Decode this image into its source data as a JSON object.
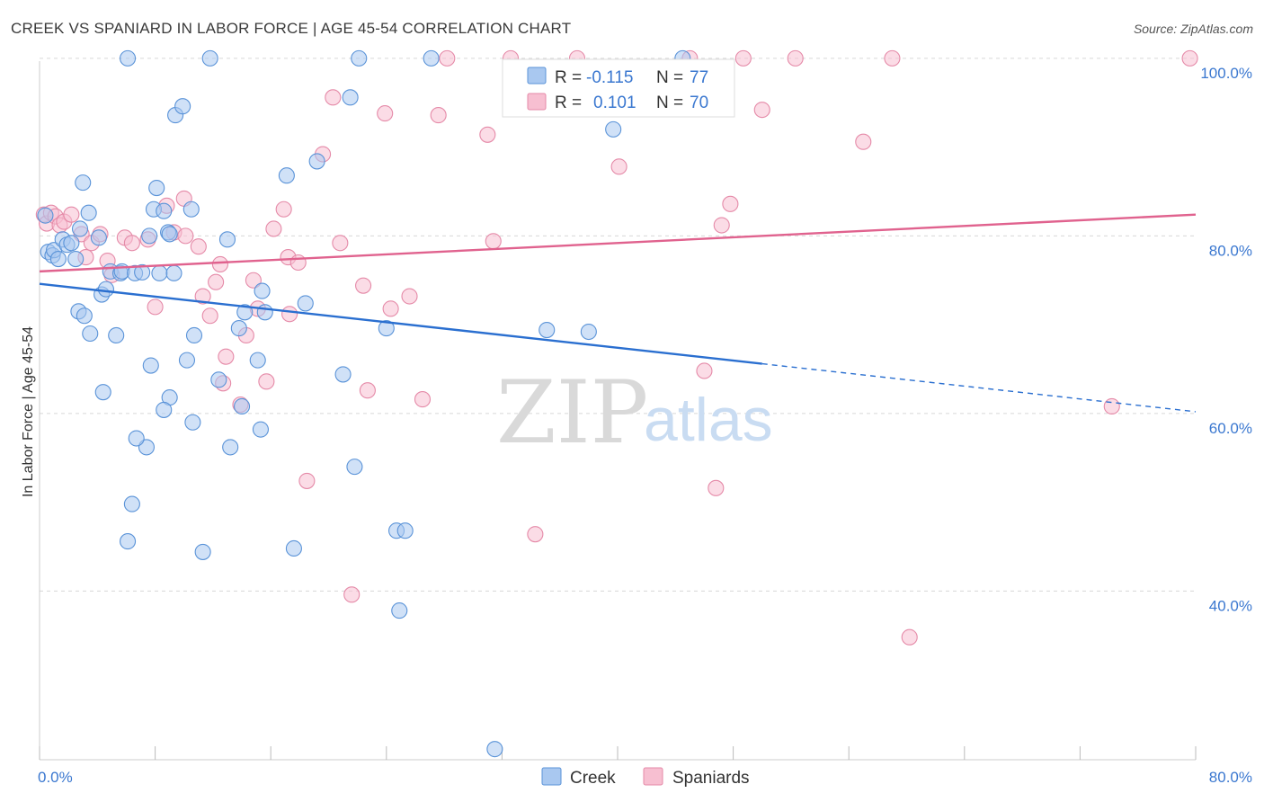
{
  "title": "CREEK VS SPANIARD IN LABOR FORCE | AGE 45-54 CORRELATION CHART",
  "source": "Source: ZipAtlas.com",
  "watermark": {
    "zip": "ZIP",
    "atlas": "atlas"
  },
  "chart_data": {
    "type": "scatter",
    "xlabel": "",
    "ylabel": "In Labor Force | Age 45-54",
    "xlim": [
      0,
      80
    ],
    "ylim": [
      21,
      101
    ],
    "x_tick_labels": [
      {
        "value": 0,
        "label": "0.0%"
      },
      {
        "value": 80,
        "label": "80.0%"
      }
    ],
    "y_tick_labels": [
      {
        "value": 40,
        "label": "40.0%"
      },
      {
        "value": 60,
        "label": "60.0%"
      },
      {
        "value": 80,
        "label": "80.0%"
      },
      {
        "value": 100,
        "label": "100.0%"
      }
    ],
    "grid": true,
    "legend_position": "top-center",
    "colors": {
      "creek_fill": "#a9c8f0",
      "creek_stroke": "#5a93d8",
      "creek_line": "#2a6fd0",
      "span_fill": "#f7bfd1",
      "span_stroke": "#e58aa8",
      "span_line": "#e0628e",
      "value_text": "#3b78d0",
      "grid": "#d8d8d8"
    },
    "legend": {
      "rows": [
        {
          "r_label": "R =",
          "r_value": "-0.115",
          "n_label": "N =",
          "n_value": "77"
        },
        {
          "r_label": "R =",
          "r_value": "0.101",
          "n_label": "N =",
          "n_value": "70"
        }
      ]
    },
    "series": [
      {
        "name": "Creek",
        "trend": {
          "x0": 0,
          "y0": 74.6,
          "x1": 50,
          "y1": 65.6,
          "x_dashed_end": 80,
          "y_dashed_end": 60.2
        },
        "points": [
          [
            0.4,
            82.3
          ],
          [
            0.6,
            78.2
          ],
          [
            0.9,
            77.8
          ],
          [
            1.0,
            78.4
          ],
          [
            1.3,
            77.4
          ],
          [
            1.6,
            79.6
          ],
          [
            1.9,
            79.0
          ],
          [
            2.2,
            79.2
          ],
          [
            2.5,
            77.4
          ],
          [
            2.8,
            80.8
          ],
          [
            3.0,
            86.0
          ],
          [
            3.4,
            82.6
          ],
          [
            2.7,
            71.5
          ],
          [
            3.1,
            71.0
          ],
          [
            3.5,
            69.0
          ],
          [
            4.1,
            79.8
          ],
          [
            4.3,
            73.4
          ],
          [
            4.6,
            74.0
          ],
          [
            4.9,
            76.0
          ],
          [
            5.6,
            75.8
          ],
          [
            5.7,
            76.0
          ],
          [
            5.3,
            68.8
          ],
          [
            6.6,
            75.8
          ],
          [
            7.1,
            75.9
          ],
          [
            7.9,
            83.0
          ],
          [
            7.6,
            80.0
          ],
          [
            8.1,
            85.4
          ],
          [
            8.3,
            75.8
          ],
          [
            8.6,
            82.8
          ],
          [
            8.9,
            80.4
          ],
          [
            9.3,
            75.8
          ],
          [
            9.0,
            80.2
          ],
          [
            9.4,
            93.6
          ],
          [
            9.9,
            94.6
          ],
          [
            10.5,
            83.0
          ],
          [
            10.2,
            66.0
          ],
          [
            10.7,
            68.8
          ],
          [
            10.6,
            59.0
          ],
          [
            9.0,
            61.8
          ],
          [
            8.6,
            60.4
          ],
          [
            7.7,
            65.4
          ],
          [
            7.4,
            56.2
          ],
          [
            6.7,
            57.2
          ],
          [
            6.4,
            49.8
          ],
          [
            6.1,
            45.6
          ],
          [
            4.4,
            62.4
          ],
          [
            11.3,
            44.4
          ],
          [
            11.8,
            100
          ],
          [
            6.1,
            100
          ],
          [
            12.4,
            63.8
          ],
          [
            13.0,
            79.6
          ],
          [
            13.2,
            56.2
          ],
          [
            13.8,
            69.6
          ],
          [
            14.2,
            71.4
          ],
          [
            14.0,
            60.8
          ],
          [
            15.4,
            73.8
          ],
          [
            15.6,
            71.4
          ],
          [
            15.1,
            66.0
          ],
          [
            15.3,
            58.2
          ],
          [
            17.1,
            86.8
          ],
          [
            17.6,
            44.8
          ],
          [
            18.4,
            72.4
          ],
          [
            19.2,
            88.4
          ],
          [
            21.0,
            64.4
          ],
          [
            21.5,
            95.6
          ],
          [
            21.8,
            54.0
          ],
          [
            22.1,
            100
          ],
          [
            24.0,
            69.6
          ],
          [
            24.7,
            46.8
          ],
          [
            24.9,
            37.8
          ],
          [
            25.3,
            46.8
          ],
          [
            27.1,
            100
          ],
          [
            31.5,
            22.2
          ],
          [
            35.1,
            69.4
          ],
          [
            38.0,
            69.2
          ],
          [
            39.7,
            92.0
          ],
          [
            44.5,
            100
          ]
        ]
      },
      {
        "name": "Spaniards",
        "trend": {
          "x0": 0,
          "y0": 76.0,
          "x1": 80,
          "y1": 82.4
        },
        "points": [
          [
            0.3,
            82.4
          ],
          [
            0.5,
            81.4
          ],
          [
            0.8,
            82.6
          ],
          [
            1.1,
            82.2
          ],
          [
            1.4,
            81.2
          ],
          [
            1.7,
            81.6
          ],
          [
            2.2,
            82.4
          ],
          [
            2.9,
            80.2
          ],
          [
            3.2,
            77.6
          ],
          [
            3.6,
            79.2
          ],
          [
            4.2,
            80.2
          ],
          [
            4.7,
            77.2
          ],
          [
            5.0,
            75.6
          ],
          [
            5.9,
            79.8
          ],
          [
            6.4,
            79.2
          ],
          [
            7.5,
            79.6
          ],
          [
            8.0,
            72.0
          ],
          [
            8.8,
            83.4
          ],
          [
            9.3,
            80.4
          ],
          [
            10.1,
            80.0
          ],
          [
            10.0,
            84.2
          ],
          [
            11.3,
            73.2
          ],
          [
            11.0,
            78.8
          ],
          [
            11.8,
            71.0
          ],
          [
            12.2,
            74.8
          ],
          [
            12.5,
            76.8
          ],
          [
            12.9,
            66.4
          ],
          [
            12.7,
            63.4
          ],
          [
            13.9,
            61.0
          ],
          [
            14.3,
            68.8
          ],
          [
            14.8,
            75.0
          ],
          [
            15.1,
            71.8
          ],
          [
            15.7,
            63.6
          ],
          [
            16.2,
            80.8
          ],
          [
            16.9,
            83.0
          ],
          [
            17.2,
            77.6
          ],
          [
            17.9,
            77.0
          ],
          [
            17.3,
            71.2
          ],
          [
            18.5,
            52.4
          ],
          [
            19.6,
            89.2
          ],
          [
            20.3,
            95.6
          ],
          [
            20.8,
            79.2
          ],
          [
            21.6,
            39.6
          ],
          [
            22.4,
            74.4
          ],
          [
            22.7,
            62.6
          ],
          [
            23.9,
            93.8
          ],
          [
            24.3,
            71.8
          ],
          [
            25.6,
            73.2
          ],
          [
            26.5,
            61.6
          ],
          [
            27.6,
            93.6
          ],
          [
            28.2,
            100
          ],
          [
            31.0,
            91.4
          ],
          [
            31.4,
            79.4
          ],
          [
            32.6,
            100
          ],
          [
            34.3,
            46.4
          ],
          [
            37.2,
            100
          ],
          [
            40.1,
            87.8
          ],
          [
            45.0,
            100
          ],
          [
            46.0,
            64.8
          ],
          [
            46.8,
            51.6
          ],
          [
            47.2,
            81.2
          ],
          [
            47.8,
            83.6
          ],
          [
            48.7,
            100
          ],
          [
            50.0,
            94.2
          ],
          [
            52.3,
            100
          ],
          [
            57.0,
            90.6
          ],
          [
            59.0,
            100
          ],
          [
            60.2,
            34.8
          ],
          [
            74.2,
            60.8
          ],
          [
            79.6,
            100
          ]
        ]
      }
    ]
  }
}
